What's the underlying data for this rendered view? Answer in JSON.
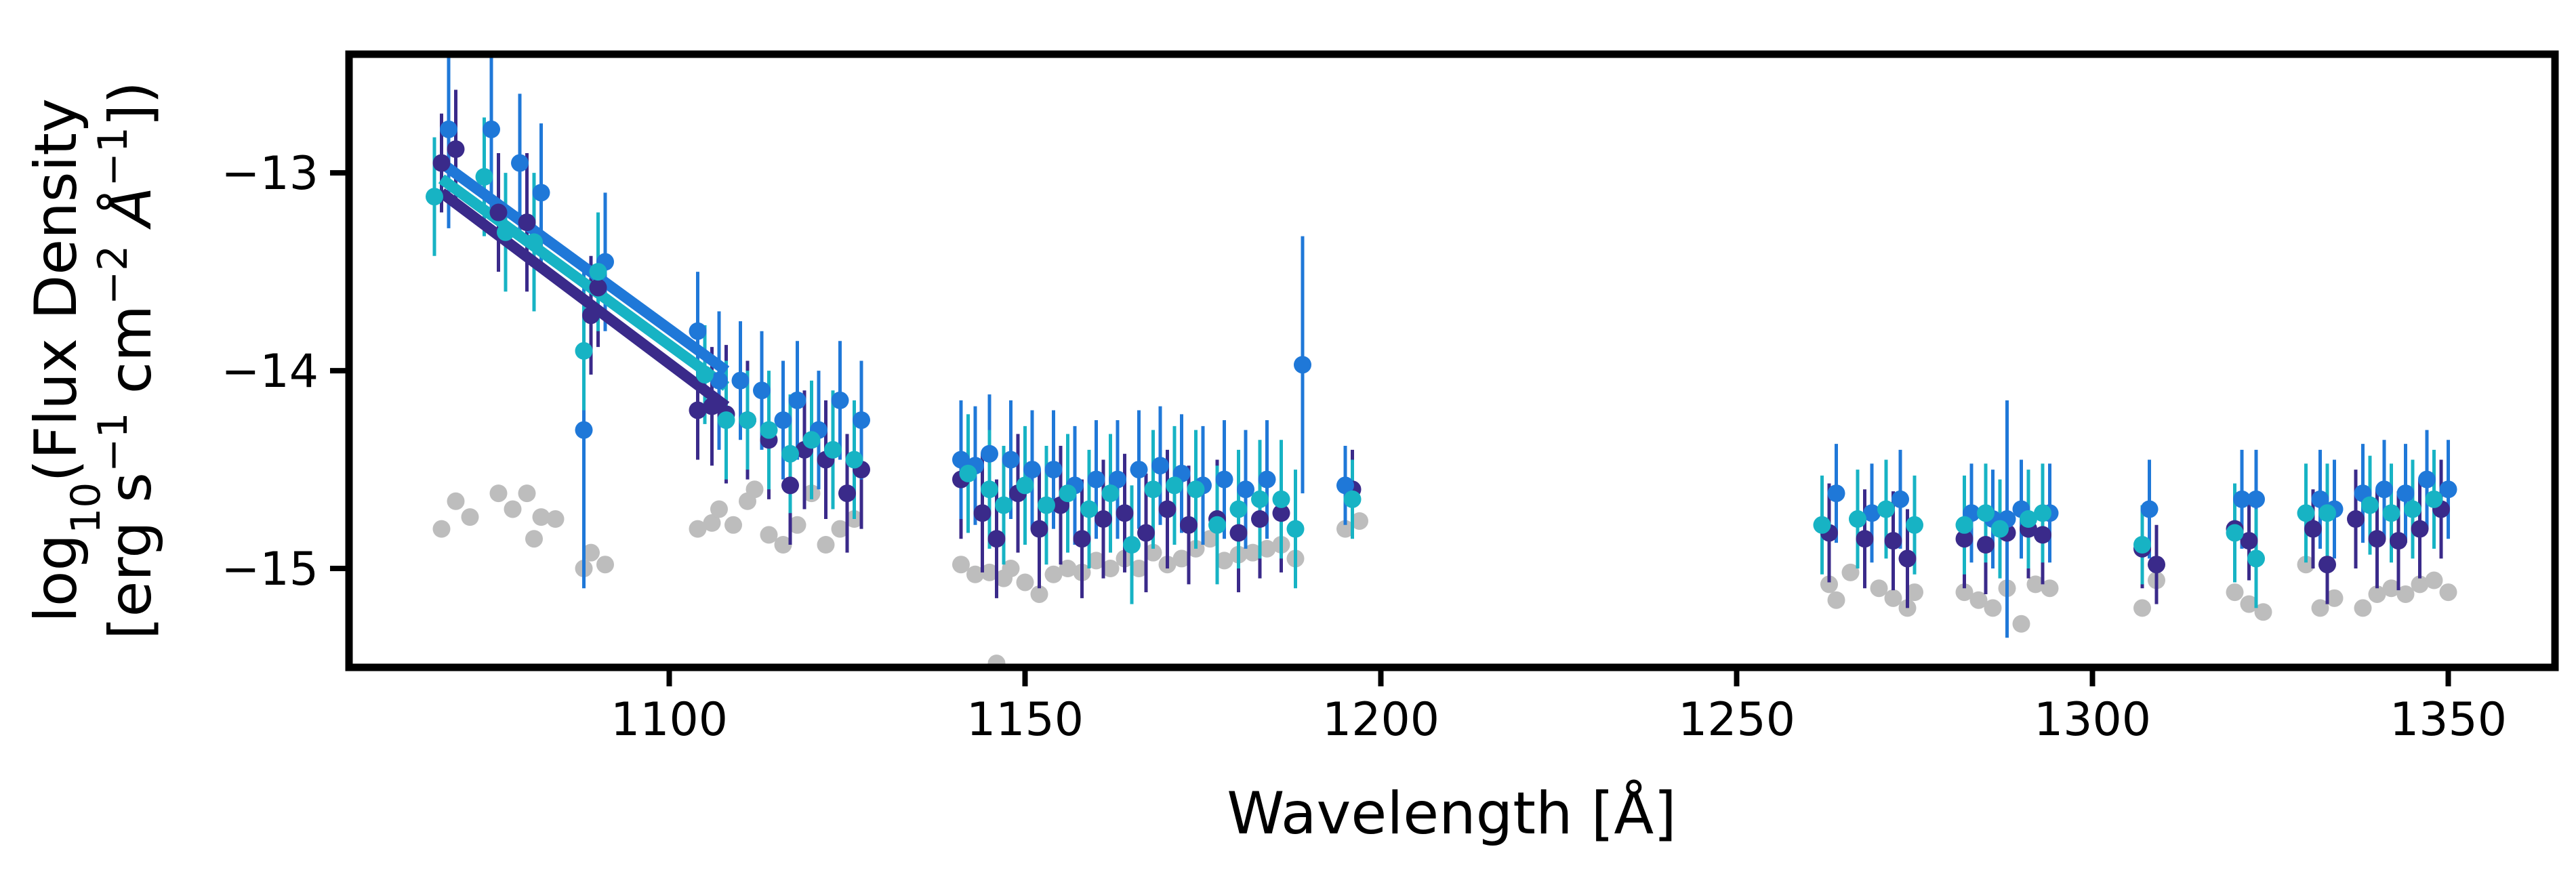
{
  "chart_data": {
    "type": "scatter",
    "xlabel": "Wavelength [Å]",
    "ylabel_line1": "log",
    "ylabel_sub": "10",
    "ylabel_line1_rest": "(Flux Density",
    "ylabel_line2": "[erg s",
    "ylabel_line2_exp1": "−1",
    "ylabel_line2_mid": " cm",
    "ylabel_line2_exp2": "−2",
    "ylabel_line2_unit": "  Å",
    "ylabel_line2_exp3": "−1",
    "ylabel_line2_end": "])",
    "xlim": [
      1055,
      1365
    ],
    "ylim": [
      -15.5,
      -12.4
    ],
    "xticks": [
      1100,
      1150,
      1200,
      1250,
      1300,
      1350
    ],
    "xtick_labels": [
      "1100",
      "1150",
      "1200",
      "1250",
      "1300",
      "1350"
    ],
    "yticks": [
      -13,
      -14,
      -15
    ],
    "ytick_labels": [
      "−13",
      "−14",
      "−15"
    ],
    "grid": false,
    "colors": {
      "gray": "#bdbdbd",
      "navy": "#3a2a8a",
      "blue": "#1f78d8",
      "cyan": "#17b3c4"
    },
    "fit_lines": [
      {
        "color": "#1f78d8",
        "x": [
          1068,
          1108
        ],
        "y": [
          -12.95,
          -14.0
        ]
      },
      {
        "color": "#17b3c4",
        "x": [
          1068,
          1108
        ],
        "y": [
          -13.03,
          -14.08
        ]
      },
      {
        "color": "#3a2a8a",
        "x": [
          1068,
          1108
        ],
        "y": [
          -13.1,
          -14.18
        ]
      }
    ],
    "gray_points": [
      [
        1068,
        -14.8
      ],
      [
        1070,
        -14.66
      ],
      [
        1072,
        -14.74
      ],
      [
        1076,
        -14.62
      ],
      [
        1078,
        -14.7
      ],
      [
        1080,
        -14.62
      ],
      [
        1081,
        -14.85
      ],
      [
        1082,
        -14.74
      ],
      [
        1084,
        -14.75
      ],
      [
        1088,
        -15.0
      ],
      [
        1089,
        -14.92
      ],
      [
        1091,
        -14.98
      ],
      [
        1104,
        -14.8
      ],
      [
        1106,
        -14.77
      ],
      [
        1107,
        -14.7
      ],
      [
        1109,
        -14.78
      ],
      [
        1111,
        -14.66
      ],
      [
        1112,
        -14.6
      ],
      [
        1114,
        -14.83
      ],
      [
        1116,
        -14.88
      ],
      [
        1118,
        -14.78
      ],
      [
        1120,
        -14.62
      ],
      [
        1122,
        -14.88
      ],
      [
        1124,
        -14.8
      ],
      [
        1126,
        -14.75
      ],
      [
        1141,
        -14.98
      ],
      [
        1143,
        -15.03
      ],
      [
        1145,
        -15.02
      ],
      [
        1147,
        -15.05
      ],
      [
        1148,
        -15.0
      ],
      [
        1150,
        -15.07
      ],
      [
        1152,
        -15.13
      ],
      [
        1154,
        -15.03
      ],
      [
        1156,
        -15.0
      ],
      [
        1158,
        -15.02
      ],
      [
        1160,
        -14.96
      ],
      [
        1162,
        -15.0
      ],
      [
        1164,
        -14.95
      ],
      [
        1166,
        -15.0
      ],
      [
        1168,
        -14.92
      ],
      [
        1170,
        -14.98
      ],
      [
        1172,
        -14.95
      ],
      [
        1174,
        -14.9
      ],
      [
        1176,
        -14.85
      ],
      [
        1178,
        -14.96
      ],
      [
        1180,
        -14.93
      ],
      [
        1182,
        -14.92
      ],
      [
        1184,
        -14.9
      ],
      [
        1186,
        -14.88
      ],
      [
        1188,
        -14.95
      ],
      [
        1146,
        -15.48
      ],
      [
        1195,
        -14.8
      ],
      [
        1197,
        -14.76
      ],
      [
        1263,
        -15.08
      ],
      [
        1264,
        -15.16
      ],
      [
        1266,
        -15.02
      ],
      [
        1270,
        -15.1
      ],
      [
        1272,
        -15.15
      ],
      [
        1274,
        -15.2
      ],
      [
        1275,
        -15.12
      ],
      [
        1282,
        -15.12
      ],
      [
        1284,
        -15.16
      ],
      [
        1286,
        -15.2
      ],
      [
        1288,
        -15.1
      ],
      [
        1290,
        -15.28
      ],
      [
        1292,
        -15.08
      ],
      [
        1294,
        -15.1
      ],
      [
        1307,
        -15.2
      ],
      [
        1309,
        -15.06
      ],
      [
        1320,
        -15.12
      ],
      [
        1322,
        -15.18
      ],
      [
        1324,
        -15.22
      ],
      [
        1330,
        -14.98
      ],
      [
        1332,
        -15.2
      ],
      [
        1334,
        -15.15
      ],
      [
        1338,
        -15.2
      ],
      [
        1340,
        -15.13
      ],
      [
        1342,
        -15.1
      ],
      [
        1344,
        -15.13
      ],
      [
        1346,
        -15.08
      ],
      [
        1348,
        -15.06
      ],
      [
        1350,
        -15.12
      ]
    ],
    "series": [
      {
        "color": "#3a2a8a",
        "points": [
          [
            1068,
            -12.95,
            0.25
          ],
          [
            1070,
            -12.88,
            0.3
          ],
          [
            1076,
            -13.2,
            0.3
          ],
          [
            1080,
            -13.25,
            0.35
          ],
          [
            1089,
            -13.72,
            0.3
          ],
          [
            1090,
            -13.58,
            0.3
          ],
          [
            1104,
            -14.2,
            0.25
          ],
          [
            1106,
            -14.18,
            0.3
          ],
          [
            1108,
            -14.22,
            0.35
          ],
          [
            1111,
            -14.25,
            0.3
          ],
          [
            1114,
            -14.35,
            0.3
          ],
          [
            1117,
            -14.58,
            0.3
          ],
          [
            1119,
            -14.4,
            0.3
          ],
          [
            1122,
            -14.45,
            0.3
          ],
          [
            1125,
            -14.62,
            0.3
          ],
          [
            1127,
            -14.5,
            0.3
          ],
          [
            1141,
            -14.55,
            0.3
          ],
          [
            1144,
            -14.72,
            0.3
          ],
          [
            1146,
            -14.85,
            0.3
          ],
          [
            1149,
            -14.62,
            0.3
          ],
          [
            1152,
            -14.8,
            0.3
          ],
          [
            1155,
            -14.68,
            0.3
          ],
          [
            1158,
            -14.85,
            0.3
          ],
          [
            1161,
            -14.75,
            0.3
          ],
          [
            1164,
            -14.72,
            0.3
          ],
          [
            1167,
            -14.82,
            0.3
          ],
          [
            1170,
            -14.7,
            0.3
          ],
          [
            1173,
            -14.78,
            0.3
          ],
          [
            1177,
            -14.75,
            0.3
          ],
          [
            1180,
            -14.82,
            0.3
          ],
          [
            1183,
            -14.75,
            0.3
          ],
          [
            1186,
            -14.72,
            0.3
          ],
          [
            1196,
            -14.6,
            0.2
          ],
          [
            1263,
            -14.82,
            0.25
          ],
          [
            1268,
            -14.85,
            0.25
          ],
          [
            1272,
            -14.86,
            0.25
          ],
          [
            1274,
            -14.95,
            0.25
          ],
          [
            1282,
            -14.85,
            0.25
          ],
          [
            1285,
            -14.88,
            0.25
          ],
          [
            1288,
            -14.82,
            0.25
          ],
          [
            1291,
            -14.8,
            0.25
          ],
          [
            1293,
            -14.83,
            0.25
          ],
          [
            1307,
            -14.9,
            0.2
          ],
          [
            1309,
            -14.98,
            0.2
          ],
          [
            1320,
            -14.8,
            0.2
          ],
          [
            1322,
            -14.86,
            0.2
          ],
          [
            1331,
            -14.8,
            0.2
          ],
          [
            1333,
            -14.98,
            0.2
          ],
          [
            1337,
            -14.75,
            0.25
          ],
          [
            1340,
            -14.85,
            0.25
          ],
          [
            1343,
            -14.86,
            0.25
          ],
          [
            1346,
            -14.8,
            0.25
          ],
          [
            1349,
            -14.7,
            0.25
          ]
        ]
      },
      {
        "color": "#1f78d8",
        "points": [
          [
            1069,
            -12.78,
            0.5
          ],
          [
            1075,
            -12.78,
            0.4
          ],
          [
            1079,
            -12.95,
            0.35
          ],
          [
            1082,
            -13.1,
            0.35
          ],
          [
            1088,
            -14.3,
            0.8
          ],
          [
            1091,
            -13.45,
            0.35
          ],
          [
            1104,
            -13.8,
            0.3
          ],
          [
            1107,
            -14.05,
            0.35
          ],
          [
            1110,
            -14.05,
            0.3
          ],
          [
            1113,
            -14.1,
            0.3
          ],
          [
            1116,
            -14.25,
            0.3
          ],
          [
            1118,
            -14.15,
            0.3
          ],
          [
            1121,
            -14.3,
            0.3
          ],
          [
            1124,
            -14.15,
            0.3
          ],
          [
            1127,
            -14.25,
            0.3
          ],
          [
            1141,
            -14.45,
            0.3
          ],
          [
            1143,
            -14.48,
            0.3
          ],
          [
            1145,
            -14.42,
            0.3
          ],
          [
            1148,
            -14.45,
            0.3
          ],
          [
            1151,
            -14.5,
            0.3
          ],
          [
            1154,
            -14.5,
            0.3
          ],
          [
            1157,
            -14.58,
            0.3
          ],
          [
            1160,
            -14.55,
            0.3
          ],
          [
            1163,
            -14.55,
            0.3
          ],
          [
            1166,
            -14.5,
            0.3
          ],
          [
            1169,
            -14.48,
            0.3
          ],
          [
            1172,
            -14.52,
            0.3
          ],
          [
            1175,
            -14.58,
            0.3
          ],
          [
            1178,
            -14.55,
            0.3
          ],
          [
            1181,
            -14.6,
            0.3
          ],
          [
            1184,
            -14.55,
            0.3
          ],
          [
            1189,
            -13.97,
            0.65
          ],
          [
            1195,
            -14.58,
            0.2
          ],
          [
            1264,
            -14.62,
            0.25
          ],
          [
            1269,
            -14.72,
            0.25
          ],
          [
            1273,
            -14.65,
            0.25
          ],
          [
            1283,
            -14.72,
            0.25
          ],
          [
            1286,
            -14.75,
            0.25
          ],
          [
            1288,
            -14.75,
            0.6
          ],
          [
            1290,
            -14.7,
            0.25
          ],
          [
            1294,
            -14.72,
            0.25
          ],
          [
            1308,
            -14.7,
            0.25
          ],
          [
            1321,
            -14.65,
            0.25
          ],
          [
            1323,
            -14.65,
            0.25
          ],
          [
            1332,
            -14.65,
            0.25
          ],
          [
            1334,
            -14.7,
            0.25
          ],
          [
            1338,
            -14.62,
            0.25
          ],
          [
            1341,
            -14.6,
            0.25
          ],
          [
            1344,
            -14.62,
            0.25
          ],
          [
            1347,
            -14.55,
            0.25
          ],
          [
            1350,
            -14.6,
            0.25
          ]
        ]
      },
      {
        "color": "#17b3c4",
        "points": [
          [
            1067,
            -13.12,
            0.3
          ],
          [
            1074,
            -13.02,
            0.3
          ],
          [
            1077,
            -13.3,
            0.3
          ],
          [
            1081,
            -13.35,
            0.35
          ],
          [
            1088,
            -13.9,
            0.3
          ],
          [
            1090,
            -13.5,
            0.3
          ],
          [
            1105,
            -14.02,
            0.25
          ],
          [
            1108,
            -14.25,
            0.3
          ],
          [
            1111,
            -14.25,
            0.25
          ],
          [
            1114,
            -14.3,
            0.3
          ],
          [
            1117,
            -14.42,
            0.3
          ],
          [
            1120,
            -14.35,
            0.3
          ],
          [
            1123,
            -14.4,
            0.3
          ],
          [
            1126,
            -14.45,
            0.3
          ],
          [
            1142,
            -14.52,
            0.3
          ],
          [
            1145,
            -14.6,
            0.3
          ],
          [
            1147,
            -14.68,
            0.3
          ],
          [
            1150,
            -14.58,
            0.3
          ],
          [
            1153,
            -14.68,
            0.3
          ],
          [
            1156,
            -14.62,
            0.3
          ],
          [
            1159,
            -14.7,
            0.3
          ],
          [
            1162,
            -14.62,
            0.3
          ],
          [
            1165,
            -14.88,
            0.3
          ],
          [
            1168,
            -14.6,
            0.3
          ],
          [
            1171,
            -14.58,
            0.3
          ],
          [
            1174,
            -14.6,
            0.3
          ],
          [
            1177,
            -14.78,
            0.3
          ],
          [
            1180,
            -14.7,
            0.3
          ],
          [
            1183,
            -14.65,
            0.3
          ],
          [
            1186,
            -14.65,
            0.3
          ],
          [
            1188,
            -14.8,
            0.3
          ],
          [
            1196,
            -14.65,
            0.2
          ],
          [
            1262,
            -14.78,
            0.25
          ],
          [
            1267,
            -14.75,
            0.25
          ],
          [
            1271,
            -14.7,
            0.25
          ],
          [
            1275,
            -14.78,
            0.25
          ],
          [
            1282,
            -14.78,
            0.25
          ],
          [
            1285,
            -14.72,
            0.25
          ],
          [
            1287,
            -14.8,
            0.25
          ],
          [
            1291,
            -14.75,
            0.25
          ],
          [
            1293,
            -14.72,
            0.25
          ],
          [
            1307,
            -14.88,
            0.2
          ],
          [
            1320,
            -14.82,
            0.25
          ],
          [
            1323,
            -14.95,
            0.25
          ],
          [
            1330,
            -14.72,
            0.25
          ],
          [
            1333,
            -14.72,
            0.25
          ],
          [
            1339,
            -14.68,
            0.25
          ],
          [
            1342,
            -14.72,
            0.25
          ],
          [
            1345,
            -14.7,
            0.25
          ],
          [
            1348,
            -14.65,
            0.25
          ]
        ]
      }
    ]
  }
}
